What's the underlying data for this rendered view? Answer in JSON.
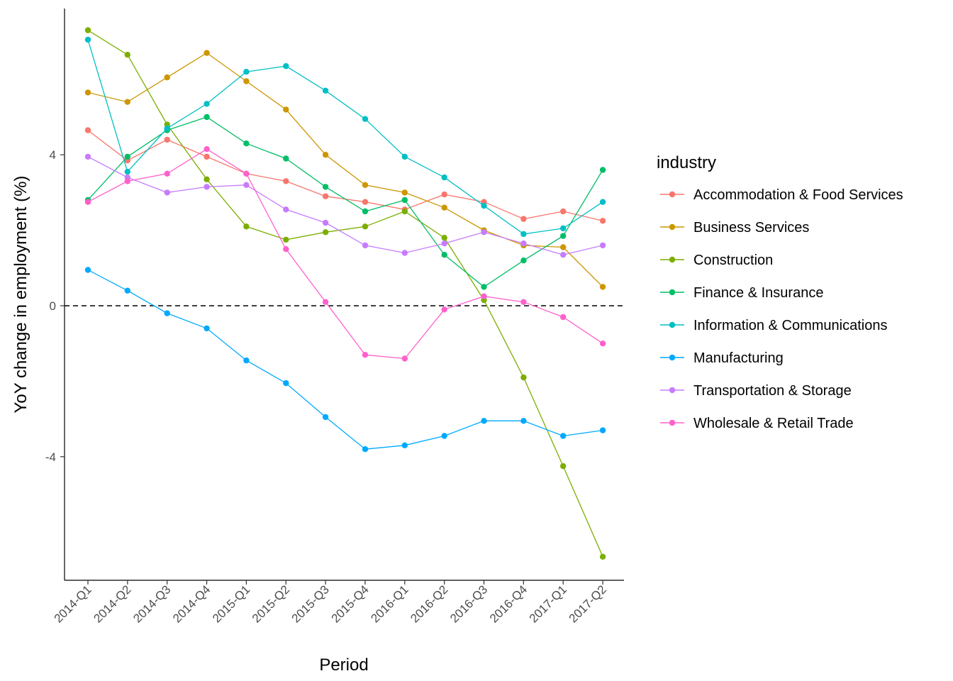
{
  "chart_data": {
    "type": "line",
    "title": "",
    "xlabel": "Period",
    "ylabel": "YoY change in employment (%)",
    "x": [
      "2014-Q1",
      "2014-Q2",
      "2014-Q3",
      "2014-Q4",
      "2015-Q1",
      "2015-Q2",
      "2015-Q3",
      "2015-Q4",
      "2016-Q1",
      "2016-Q2",
      "2016-Q3",
      "2016-Q4",
      "2017-Q1",
      "2017-Q2"
    ],
    "yticks": [
      -4,
      0,
      4
    ],
    "ylim": [
      -7.2,
      7.9
    ],
    "reference_line": {
      "y": 0,
      "style": "dashed"
    },
    "grid": false,
    "legend": {
      "title": "industry",
      "position": "right"
    },
    "series": [
      {
        "name": "Accommodation & Food Services",
        "color": "#F8766D",
        "values": [
          4.65,
          3.85,
          4.4,
          3.95,
          3.5,
          3.3,
          2.9,
          2.75,
          2.55,
          2.95,
          2.75,
          2.3,
          2.5,
          2.25
        ]
      },
      {
        "name": "Business Services",
        "color": "#CD9600",
        "values": [
          5.65,
          5.4,
          6.05,
          6.7,
          5.95,
          5.2,
          4.0,
          3.2,
          3.0,
          2.6,
          2.0,
          1.6,
          1.55,
          0.5
        ]
      },
      {
        "name": "Construction",
        "color": "#7CAE00",
        "values": [
          7.3,
          6.65,
          4.8,
          3.35,
          2.1,
          1.75,
          1.95,
          2.1,
          2.5,
          1.8,
          0.15,
          -1.9,
          -4.25,
          -6.65
        ]
      },
      {
        "name": "Finance & Insurance",
        "color": "#00BE67",
        "values": [
          2.8,
          3.95,
          4.65,
          5.0,
          4.3,
          3.9,
          3.15,
          2.5,
          2.8,
          1.35,
          0.5,
          1.2,
          1.85,
          3.6
        ]
      },
      {
        "name": "Information & Communications",
        "color": "#00BFC4",
        "values": [
          7.05,
          3.55,
          4.7,
          5.35,
          6.2,
          6.35,
          5.7,
          4.95,
          3.95,
          3.4,
          2.65,
          1.9,
          2.05,
          2.75
        ]
      },
      {
        "name": "Manufacturing",
        "color": "#00A9FF",
        "values": [
          0.95,
          0.4,
          -0.2,
          -0.6,
          -1.45,
          -2.05,
          -2.95,
          -3.8,
          -3.7,
          -3.45,
          -3.05,
          -3.05,
          -3.45,
          -3.3
        ]
      },
      {
        "name": "Transportation & Storage",
        "color": "#C77CFF",
        "values": [
          3.95,
          3.4,
          3.0,
          3.15,
          3.2,
          2.55,
          2.2,
          1.6,
          1.4,
          1.65,
          1.95,
          1.65,
          1.35,
          1.6
        ]
      },
      {
        "name": "Wholesale & Retail Trade",
        "color": "#FF61CC",
        "values": [
          2.75,
          3.3,
          3.5,
          4.15,
          3.5,
          1.5,
          0.1,
          -1.3,
          -1.4,
          -0.1,
          0.25,
          0.1,
          -0.3,
          -1.0
        ]
      }
    ]
  }
}
